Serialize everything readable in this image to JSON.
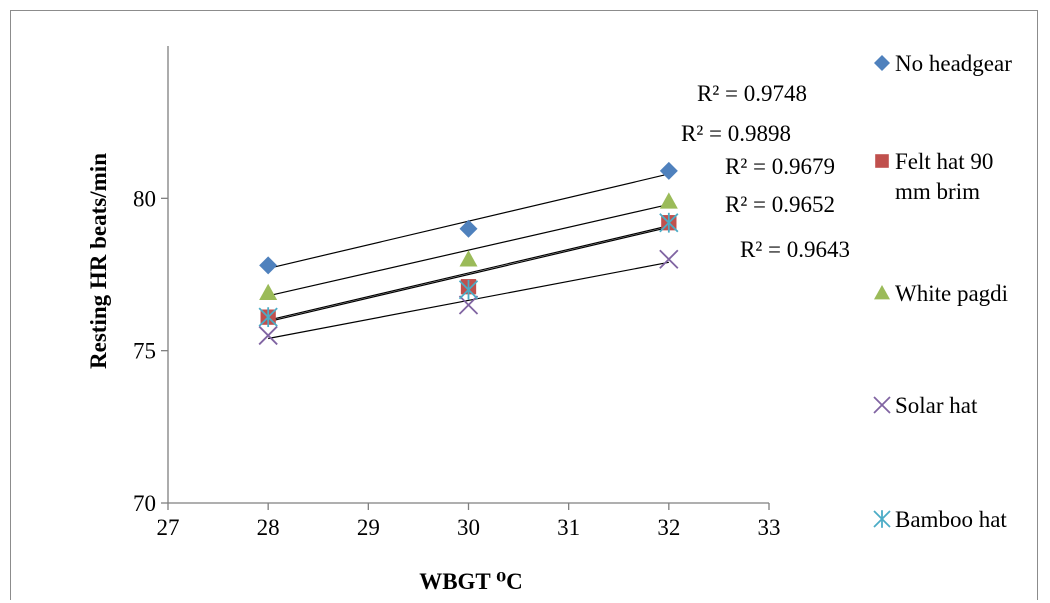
{
  "chart_data": {
    "type": "scatter",
    "title": "",
    "xlabel": "WBGT ⁰C",
    "ylabel": "Resting HR beats/min",
    "xlim": [
      27,
      33
    ],
    "ylim": [
      70,
      85
    ],
    "x_ticks": [
      "27",
      "28",
      "29",
      "30",
      "31",
      "32",
      "33"
    ],
    "y_ticks": [
      "70",
      "75",
      "80"
    ],
    "grid": false,
    "legend_position": "right",
    "x": [
      28,
      30,
      32
    ],
    "series": [
      {
        "name": "No headgear",
        "marker": "diamond",
        "color": "#4f81bd",
        "values": [
          77.8,
          79.0,
          80.9
        ],
        "trendline": [
          77.7,
          79.25,
          80.8
        ],
        "r2": "R² = 0.9748"
      },
      {
        "name": "Felt hat 90 mm brim",
        "legend_lines": [
          "Felt hat 90",
          "mm brim"
        ],
        "marker": "square",
        "color": "#c0504d",
        "values": [
          76.1,
          77.1,
          79.2
        ],
        "trendline": [
          75.95,
          77.5,
          79.05
        ],
        "r2": "R² = 0.9652"
      },
      {
        "name": "White pagdi",
        "marker": "triangle",
        "color": "#9bbb59",
        "values": [
          76.9,
          78.0,
          79.9
        ],
        "trendline": [
          76.8,
          78.3,
          79.8
        ],
        "r2": "R² = 0.9898"
      },
      {
        "name": "Solar hat",
        "marker": "x",
        "color": "#8064a2",
        "values": [
          75.5,
          76.5,
          78.0
        ],
        "trendline": [
          75.4,
          76.65,
          77.9
        ],
        "r2": "R² = 0.9643"
      },
      {
        "name": "Bamboo hat",
        "marker": "asterisk",
        "color": "#4bacc6",
        "values": [
          76.1,
          77.0,
          79.2
        ],
        "trendline": [
          76.0,
          77.55,
          79.1
        ],
        "r2": "R² = 0.9679"
      }
    ],
    "r2_labels_order": [
      "R² = 0.9748",
      "R² = 0.9898",
      "R² = 0.9679",
      "R² = 0.9652",
      "R² = 0.9643"
    ]
  }
}
